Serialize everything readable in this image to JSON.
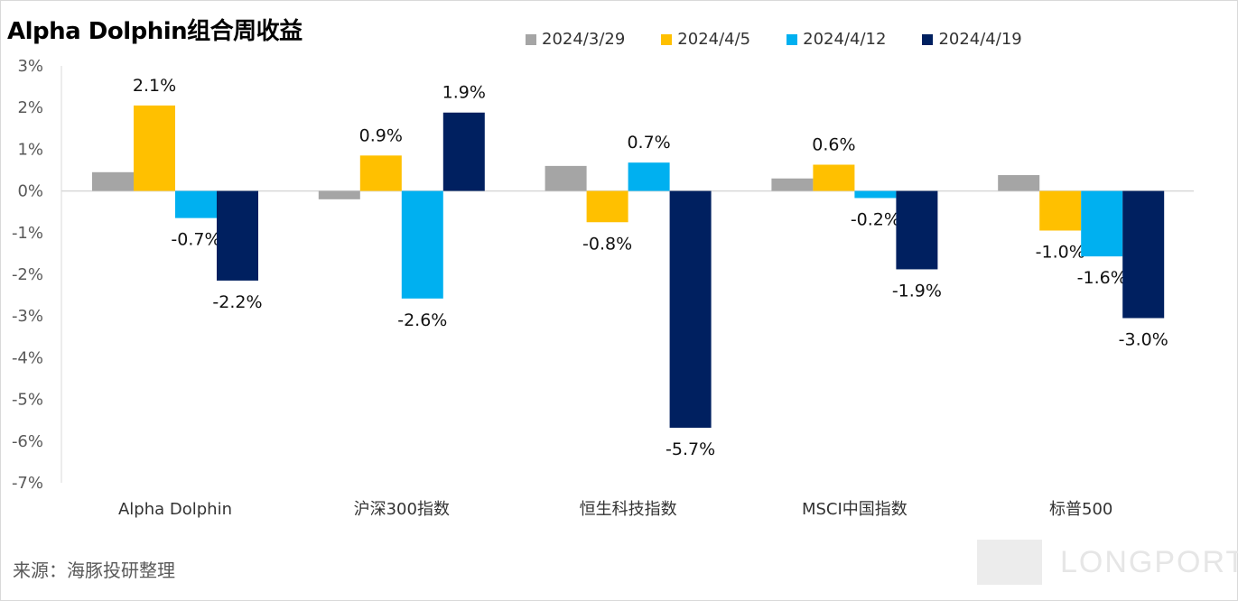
{
  "colors": {
    "series": [
      "#A5A5A5",
      "#FFC000",
      "#00B0F0",
      "#002060"
    ]
  },
  "footer": {
    "source": "来源：海豚投研整理",
    "brand": "LONGPORT"
  },
  "chart_data": {
    "type": "bar",
    "title": "Alpha Dolphin组合周收益",
    "xlabel": "",
    "ylabel": "",
    "ylim": [
      -7,
      3
    ],
    "yticks": [
      "3%",
      "2%",
      "1%",
      "0%",
      "-1%",
      "-2%",
      "-3%",
      "-4%",
      "-5%",
      "-6%",
      "-7%"
    ],
    "legend_position": "top",
    "grid": false,
    "categories": [
      "Alpha Dolphin",
      "沪深300指数",
      "恒生科技指数",
      "MSCI中国指数",
      "标普500"
    ],
    "series": [
      {
        "name": "2024/3/29",
        "values": [
          0.45,
          -0.2,
          0.6,
          0.3,
          0.38
        ]
      },
      {
        "name": "2024/4/5",
        "values": [
          2.05,
          0.85,
          -0.75,
          0.63,
          -0.95
        ]
      },
      {
        "name": "2024/4/12",
        "values": [
          -0.65,
          -2.58,
          0.68,
          -0.17,
          -1.57
        ]
      },
      {
        "name": "2024/4/19",
        "values": [
          -2.15,
          1.88,
          -5.68,
          -1.88,
          -3.05
        ]
      }
    ],
    "data_labels": [
      [
        null,
        null,
        null,
        null,
        null
      ],
      [
        "2.1%",
        "0.9%",
        "-0.8%",
        "0.6%",
        "-1.0%"
      ],
      [
        "-0.7%",
        "-2.6%",
        "0.7%",
        "-0.2%",
        "-1.6%"
      ],
      [
        "-2.2%",
        "1.9%",
        "-5.7%",
        "-1.9%",
        "-3.0%"
      ]
    ]
  }
}
